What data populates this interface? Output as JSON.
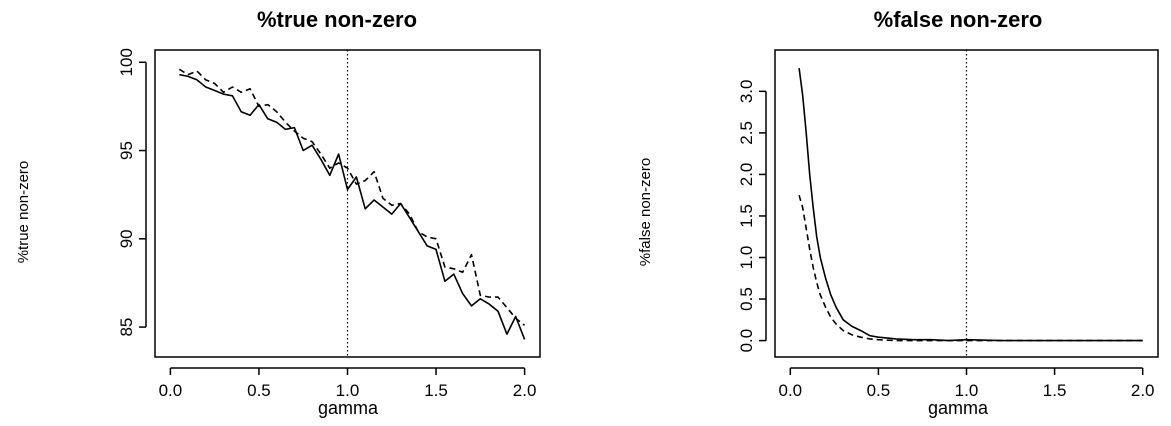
{
  "chart_data": [
    {
      "type": "line",
      "title": "%true non-zero",
      "xlabel": "gamma",
      "ylabel": "%true non-zero",
      "xlim": [
        0,
        2
      ],
      "ylim": [
        84,
        100
      ],
      "xticks": [
        0.0,
        0.5,
        1.0,
        1.5,
        2.0
      ],
      "xtick_labels": [
        "0.0",
        "0.5",
        "1.0",
        "1.5",
        "2.0"
      ],
      "yticks": [
        85,
        90,
        95,
        100
      ],
      "ytick_labels": [
        "85",
        "90",
        "95",
        "100"
      ],
      "vline_x": 1.0,
      "grid": false,
      "series": [
        {
          "line_style": "solid",
          "x": [
            0.05,
            0.1,
            0.15,
            0.2,
            0.25,
            0.3,
            0.35,
            0.4,
            0.45,
            0.5,
            0.55,
            0.6,
            0.65,
            0.7,
            0.75,
            0.8,
            0.85,
            0.9,
            0.95,
            1.0,
            1.05,
            1.1,
            1.15,
            1.2,
            1.25,
            1.3,
            1.35,
            1.4,
            1.45,
            1.5,
            1.55,
            1.6,
            1.65,
            1.7,
            1.75,
            1.8,
            1.85,
            1.9,
            1.95,
            2.0
          ],
          "values": [
            99.3,
            99.2,
            99.0,
            98.6,
            98.4,
            98.2,
            98.1,
            97.2,
            97.0,
            97.6,
            96.8,
            96.6,
            96.2,
            96.3,
            95.0,
            95.3,
            94.5,
            93.6,
            94.8,
            92.8,
            93.5,
            91.7,
            92.2,
            91.8,
            91.4,
            92.0,
            91.2,
            90.4,
            89.6,
            89.4,
            87.6,
            88.0,
            86.9,
            86.2,
            86.6,
            86.3,
            85.9,
            84.6,
            85.6,
            84.3
          ]
        },
        {
          "line_style": "dashed",
          "x": [
            0.05,
            0.1,
            0.15,
            0.2,
            0.25,
            0.3,
            0.35,
            0.4,
            0.45,
            0.5,
            0.55,
            0.6,
            0.65,
            0.7,
            0.75,
            0.8,
            0.85,
            0.9,
            0.95,
            1.0,
            1.05,
            1.1,
            1.15,
            1.2,
            1.25,
            1.3,
            1.35,
            1.4,
            1.45,
            1.5,
            1.55,
            1.6,
            1.65,
            1.7,
            1.75,
            1.8,
            1.85,
            1.9,
            1.95,
            2.0
          ],
          "values": [
            99.6,
            99.3,
            99.5,
            99.0,
            98.8,
            98.3,
            98.6,
            98.3,
            98.5,
            97.5,
            97.6,
            97.2,
            96.6,
            96.1,
            95.7,
            95.5,
            94.8,
            94.0,
            94.3,
            94.0,
            93.1,
            93.3,
            93.8,
            92.3,
            91.9,
            92.0,
            91.4,
            90.4,
            90.1,
            90.0,
            88.4,
            88.3,
            88.1,
            89.1,
            86.8,
            86.7,
            86.7,
            86.1,
            85.5,
            85.1
          ]
        }
      ]
    },
    {
      "type": "line",
      "title": "%false non-zero",
      "xlabel": "gamma",
      "ylabel": "%false non-zero",
      "xlim": [
        0,
        2
      ],
      "ylim": [
        -0.05,
        3.35
      ],
      "xticks": [
        0.0,
        0.5,
        1.0,
        1.5,
        2.0
      ],
      "xtick_labels": [
        "0.0",
        "0.5",
        "1.0",
        "1.5",
        "2.0"
      ],
      "yticks": [
        0.0,
        0.5,
        1.0,
        1.5,
        2.0,
        2.5,
        3.0
      ],
      "ytick_labels": [
        "0.0",
        "0.5",
        "1.0",
        "1.5",
        "2.0",
        "2.5",
        "3.0"
      ],
      "vline_x": 1.0,
      "grid": false,
      "series": [
        {
          "line_style": "solid",
          "x": [
            0.05,
            0.07,
            0.09,
            0.11,
            0.13,
            0.15,
            0.17,
            0.2,
            0.23,
            0.26,
            0.3,
            0.35,
            0.4,
            0.45,
            0.5,
            0.6,
            0.7,
            0.8,
            0.9,
            1.0,
            1.2,
            1.4,
            1.6,
            1.8,
            2.0
          ],
          "values": [
            3.28,
            2.95,
            2.5,
            2.0,
            1.6,
            1.25,
            1.0,
            0.75,
            0.55,
            0.4,
            0.25,
            0.17,
            0.12,
            0.06,
            0.04,
            0.02,
            0.01,
            0.01,
            0.0,
            0.01,
            0.0,
            0.0,
            0.0,
            0.0,
            0.0
          ]
        },
        {
          "line_style": "dashed",
          "x": [
            0.05,
            0.07,
            0.09,
            0.11,
            0.13,
            0.15,
            0.17,
            0.2,
            0.23,
            0.26,
            0.3,
            0.35,
            0.4,
            0.45,
            0.5,
            0.6,
            0.7,
            0.8,
            0.9,
            1.0,
            1.2,
            1.4,
            1.6,
            1.8,
            2.0
          ],
          "values": [
            1.75,
            1.6,
            1.35,
            1.1,
            0.88,
            0.7,
            0.55,
            0.4,
            0.28,
            0.2,
            0.12,
            0.07,
            0.04,
            0.02,
            0.01,
            0.0,
            0.0,
            0.0,
            0.0,
            0.0,
            0.0,
            0.0,
            0.0,
            0.0,
            0.0
          ]
        }
      ]
    }
  ]
}
